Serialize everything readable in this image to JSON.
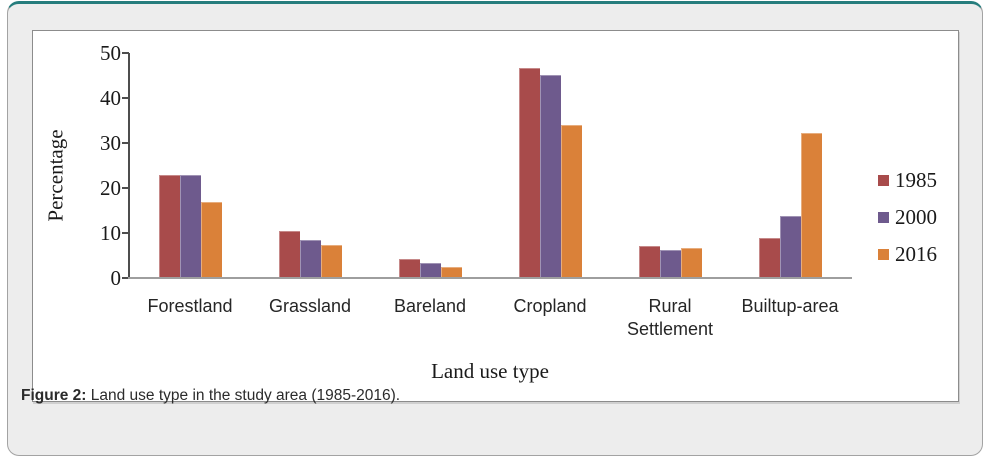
{
  "figure": {
    "caption_label": "Figure 2:",
    "caption_text": " Land use type in the study area (1985-2016)."
  },
  "colors": {
    "card_accent_teal": "#267d7d",
    "card_background": "#ededed",
    "panel_background": "#ffffff",
    "axis_line": "#4d4d4d",
    "baseline": "#9e9e9e",
    "series_1985": "#a84b4b",
    "series_2000": "#6e5a8d",
    "series_2016": "#da8139"
  },
  "chart_data": {
    "type": "bar",
    "title": "",
    "xlabel": "Land use type",
    "ylabel": "Percentage",
    "ylim": [
      0,
      50
    ],
    "yticks": [
      0,
      10,
      20,
      30,
      40,
      50
    ],
    "grid": false,
    "legend_position": "right",
    "categories": [
      "Forestland",
      "Grassland",
      "Bareland",
      "Cropland",
      "Rural Settlement",
      "Builtup-area"
    ],
    "series": [
      {
        "name": "1985",
        "color": "#a84b4b",
        "values": [
          22.9,
          10.4,
          4.2,
          46.6,
          7.1,
          8.8
        ]
      },
      {
        "name": "2000",
        "color": "#6e5a8d",
        "values": [
          22.9,
          8.4,
          3.4,
          45.1,
          6.3,
          13.8
        ]
      },
      {
        "name": "2016",
        "color": "#da8139",
        "values": [
          17.0,
          7.4,
          2.5,
          34.1,
          6.7,
          32.2
        ]
      }
    ]
  }
}
